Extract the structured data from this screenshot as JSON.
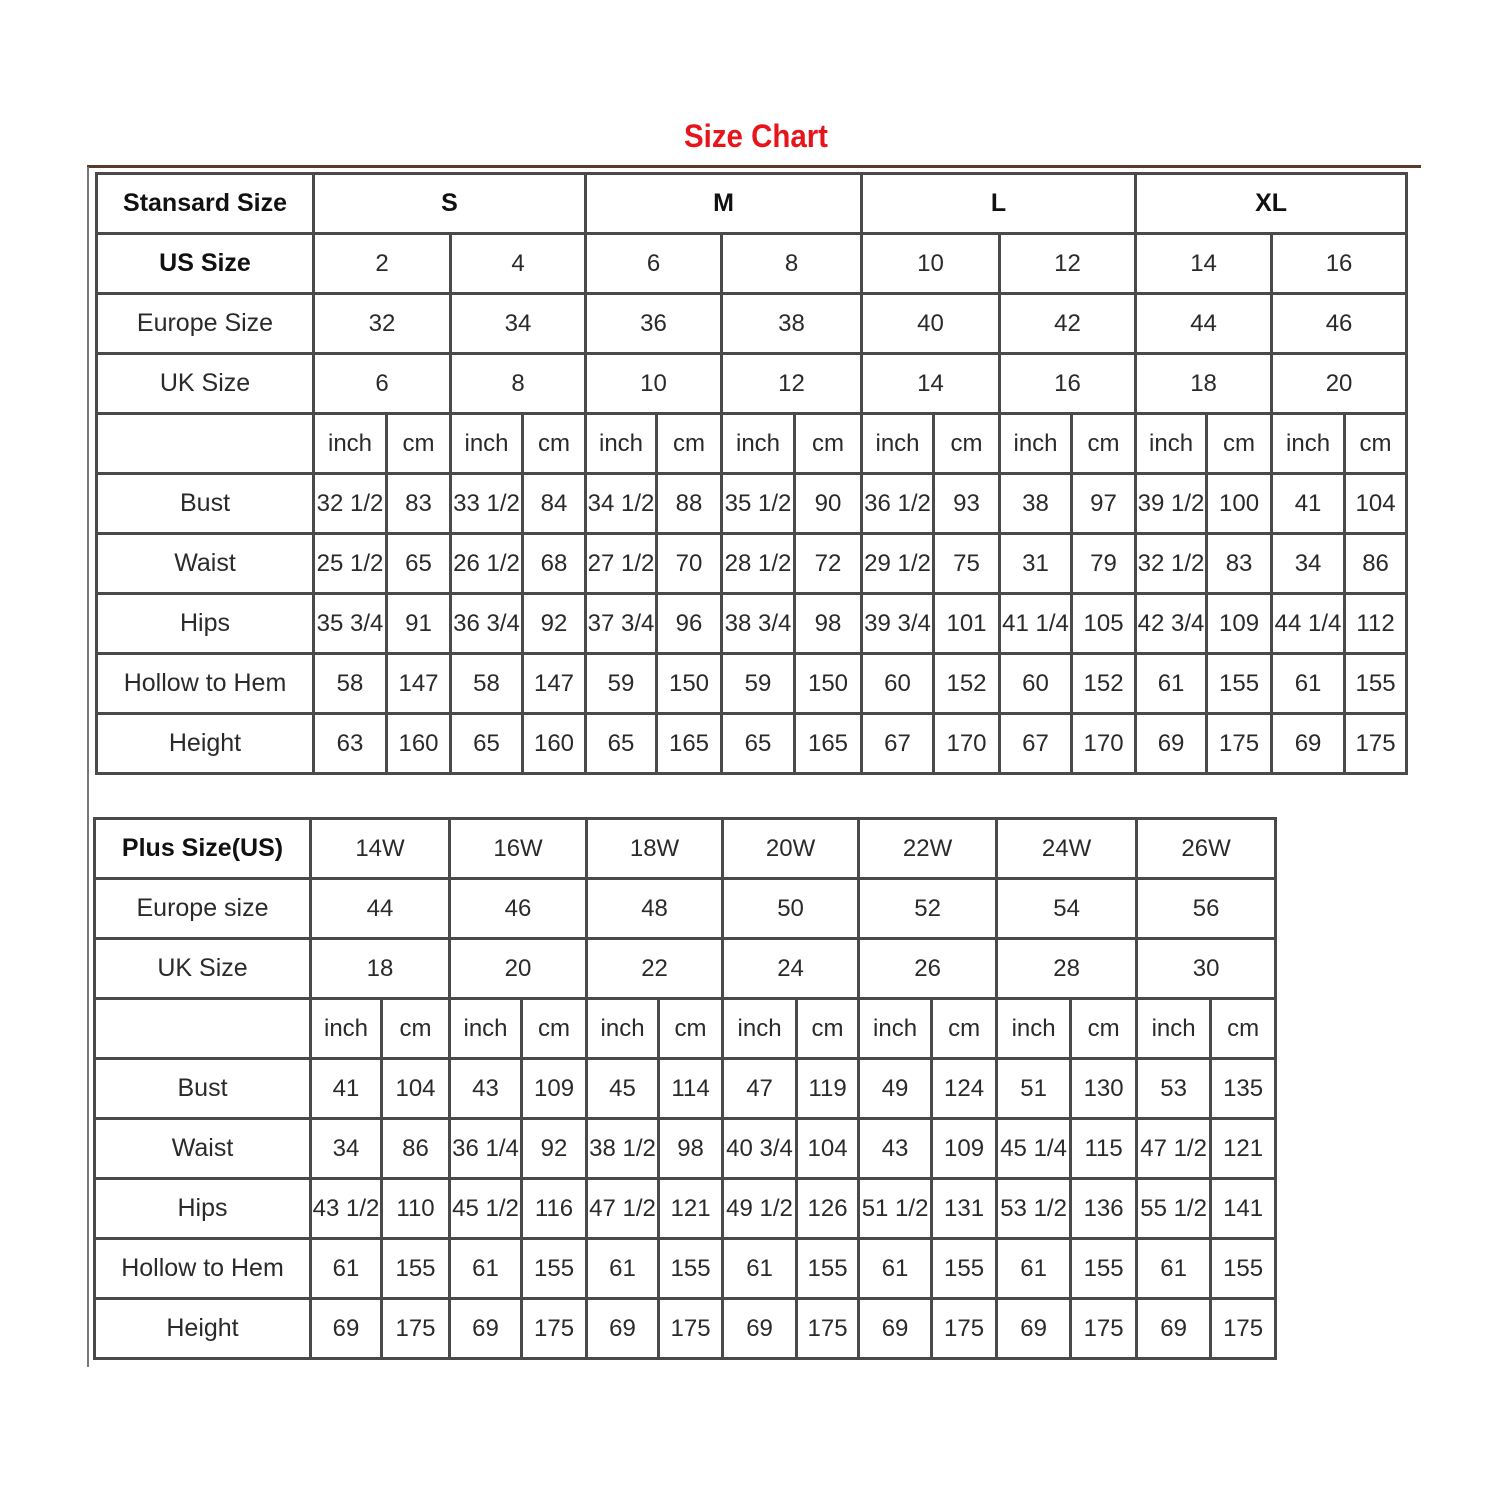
{
  "title": "Size Chart",
  "colors": {
    "title": "#e8141b",
    "border": "#4a4a4a"
  },
  "standard": {
    "header_label": "Stansard Size",
    "groups": [
      "S",
      "M",
      "L",
      "XL"
    ],
    "us_label": "US Size",
    "us": [
      "2",
      "4",
      "6",
      "8",
      "10",
      "12",
      "14",
      "16"
    ],
    "europe_label": "Europe Size",
    "europe": [
      "32",
      "34",
      "36",
      "38",
      "40",
      "42",
      "44",
      "46"
    ],
    "uk_label": "UK Size",
    "uk": [
      "6",
      "8",
      "10",
      "12",
      "14",
      "16",
      "18",
      "20"
    ],
    "units": [
      "inch",
      "cm"
    ],
    "measurements": [
      {
        "label": "Bust",
        "values": [
          [
            "32 1/2",
            "83"
          ],
          [
            "33 1/2",
            "84"
          ],
          [
            "34 1/2",
            "88"
          ],
          [
            "35 1/2",
            "90"
          ],
          [
            "36 1/2",
            "93"
          ],
          [
            "38",
            "97"
          ],
          [
            "39 1/2",
            "100"
          ],
          [
            "41",
            "104"
          ]
        ]
      },
      {
        "label": "Waist",
        "values": [
          [
            "25 1/2",
            "65"
          ],
          [
            "26 1/2",
            "68"
          ],
          [
            "27 1/2",
            "70"
          ],
          [
            "28 1/2",
            "72"
          ],
          [
            "29 1/2",
            "75"
          ],
          [
            "31",
            "79"
          ],
          [
            "32 1/2",
            "83"
          ],
          [
            "34",
            "86"
          ]
        ]
      },
      {
        "label": "Hips",
        "values": [
          [
            "35 3/4",
            "91"
          ],
          [
            "36 3/4",
            "92"
          ],
          [
            "37 3/4",
            "96"
          ],
          [
            "38 3/4",
            "98"
          ],
          [
            "39 3/4",
            "101"
          ],
          [
            "41 1/4",
            "105"
          ],
          [
            "42 3/4",
            "109"
          ],
          [
            "44 1/4",
            "112"
          ]
        ]
      },
      {
        "label": "Hollow to Hem",
        "values": [
          [
            "58",
            "147"
          ],
          [
            "58",
            "147"
          ],
          [
            "59",
            "150"
          ],
          [
            "59",
            "150"
          ],
          [
            "60",
            "152"
          ],
          [
            "60",
            "152"
          ],
          [
            "61",
            "155"
          ],
          [
            "61",
            "155"
          ]
        ]
      },
      {
        "label": "Height",
        "values": [
          [
            "63",
            "160"
          ],
          [
            "65",
            "160"
          ],
          [
            "65",
            "165"
          ],
          [
            "65",
            "165"
          ],
          [
            "67",
            "170"
          ],
          [
            "67",
            "170"
          ],
          [
            "69",
            "175"
          ],
          [
            "69",
            "175"
          ]
        ]
      }
    ]
  },
  "plus": {
    "header_label": "Plus Size(US)",
    "sizes": [
      "14W",
      "16W",
      "18W",
      "20W",
      "22W",
      "24W",
      "26W"
    ],
    "europe_label": "Europe size",
    "europe": [
      "44",
      "46",
      "48",
      "50",
      "52",
      "54",
      "56"
    ],
    "uk_label": "UK Size",
    "uk": [
      "18",
      "20",
      "22",
      "24",
      "26",
      "28",
      "30"
    ],
    "units": [
      "inch",
      "cm"
    ],
    "measurements": [
      {
        "label": "Bust",
        "values": [
          [
            "41",
            "104"
          ],
          [
            "43",
            "109"
          ],
          [
            "45",
            "114"
          ],
          [
            "47",
            "119"
          ],
          [
            "49",
            "124"
          ],
          [
            "51",
            "130"
          ],
          [
            "53",
            "135"
          ]
        ]
      },
      {
        "label": "Waist",
        "values": [
          [
            "34",
            "86"
          ],
          [
            "36 1/4",
            "92"
          ],
          [
            "38 1/2",
            "98"
          ],
          [
            "40 3/4",
            "104"
          ],
          [
            "43",
            "109"
          ],
          [
            "45 1/4",
            "115"
          ],
          [
            "47 1/2",
            "121"
          ]
        ]
      },
      {
        "label": "Hips",
        "values": [
          [
            "43 1/2",
            "110"
          ],
          [
            "45 1/2",
            "116"
          ],
          [
            "47 1/2",
            "121"
          ],
          [
            "49 1/2",
            "126"
          ],
          [
            "51 1/2",
            "131"
          ],
          [
            "53 1/2",
            "136"
          ],
          [
            "55 1/2",
            "141"
          ]
        ]
      },
      {
        "label": "Hollow to Hem",
        "values": [
          [
            "61",
            "155"
          ],
          [
            "61",
            "155"
          ],
          [
            "61",
            "155"
          ],
          [
            "61",
            "155"
          ],
          [
            "61",
            "155"
          ],
          [
            "61",
            "155"
          ],
          [
            "61",
            "155"
          ]
        ]
      },
      {
        "label": "Height",
        "values": [
          [
            "69",
            "175"
          ],
          [
            "69",
            "175"
          ],
          [
            "69",
            "175"
          ],
          [
            "69",
            "175"
          ],
          [
            "69",
            "175"
          ],
          [
            "69",
            "175"
          ],
          [
            "69",
            "175"
          ]
        ]
      }
    ]
  }
}
